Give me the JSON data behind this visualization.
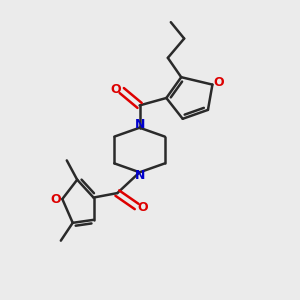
{
  "background_color": "#ebebeb",
  "bond_color": "#2a2a2a",
  "atom_colors": {
    "O": "#dd0000",
    "N": "#0000cc",
    "C": "#2a2a2a"
  },
  "figsize": [
    3.0,
    3.0
  ],
  "dpi": 100
}
